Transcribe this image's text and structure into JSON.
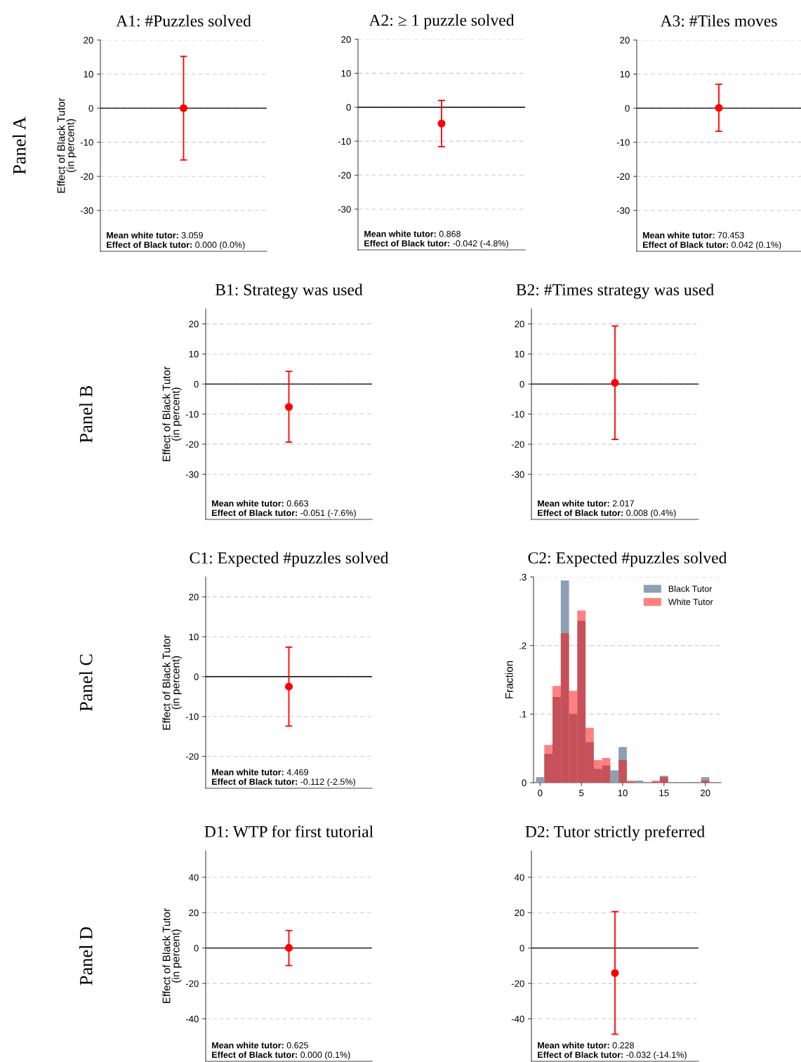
{
  "chart_data": [
    {
      "type": "scatter",
      "title": "A1: #Puzzles solved",
      "ylabel": "Effect of Black Tutor\n(in percent)",
      "categories": [
        null
      ],
      "values": [
        0.0
      ],
      "errors": [
        [
          -15.2,
          15.2
        ]
      ],
      "color": "#ff0000",
      "marker": "circle",
      "ylim": [
        -42,
        20
      ],
      "yticks": [
        20,
        10,
        0,
        -10,
        -20,
        -30
      ],
      "grid": "y",
      "tick_labels": "y",
      "ref_lines": [
        {
          "axis": "y",
          "value": 0,
          "color": "#000000"
        }
      ],
      "annotations": [
        "Panel A",
        "Mean white tutor: 3.059",
        "Effect of Black tutor: 0.000 (0.0%)"
      ]
    },
    {
      "type": "scatter",
      "title": "A2: ≥ 1 puzzle solved",
      "categories": [
        null
      ],
      "values": [
        -4.8
      ],
      "errors": [
        [
          -11.6,
          2.0
        ]
      ],
      "color": "#ff0000",
      "marker": "circle",
      "ylim": [
        -42,
        20
      ],
      "yticks": [
        20,
        10,
        0,
        -10,
        -20,
        -30
      ],
      "grid": "y",
      "tick_labels": "y",
      "ref_lines": [
        {
          "axis": "y",
          "value": 0,
          "color": "#000000"
        }
      ],
      "annotations": [
        "Mean white tutor: 0.868",
        "Effect of Black tutor: -0.042 (-4.8%)"
      ]
    },
    {
      "type": "scatter",
      "title": "A3: #Tiles moves",
      "categories": [
        null
      ],
      "values": [
        0.1
      ],
      "errors": [
        [
          -6.8,
          7.0
        ]
      ],
      "color": "#ff0000",
      "marker": "circle",
      "ylim": [
        -42,
        20
      ],
      "yticks": [
        20,
        10,
        0,
        -10,
        -20,
        -30
      ],
      "grid": "y",
      "tick_labels": "y",
      "ref_lines": [
        {
          "axis": "y",
          "value": 0,
          "color": "#000000"
        }
      ],
      "annotations": [
        "Mean white tutor: 70.453",
        "Effect of Black tutor: 0.042 (0.1%)"
      ]
    },
    {
      "type": "scatter",
      "title": "B1: Strategy was used",
      "ylabel": "Effect of Black Tutor\n(in percent)",
      "categories": [
        null
      ],
      "values": [
        -7.6
      ],
      "errors": [
        [
          -19.3,
          4.2
        ]
      ],
      "color": "#ff0000",
      "marker": "circle",
      "ylim": [
        -45,
        25
      ],
      "yticks": [
        20,
        10,
        0,
        -10,
        -20,
        -30
      ],
      "grid": "y",
      "tick_labels": "y",
      "ref_lines": [
        {
          "axis": "y",
          "value": 0,
          "color": "#000000"
        }
      ],
      "annotations": [
        "Panel B",
        "Mean white tutor: 0.663",
        "Effect of Black tutor: -0.051 (-7.6%)"
      ]
    },
    {
      "type": "scatter",
      "title": "B2: #Times strategy was used",
      "categories": [
        null
      ],
      "values": [
        0.4
      ],
      "errors": [
        [
          -18.4,
          19.3
        ]
      ],
      "color": "#ff0000",
      "marker": "circle",
      "ylim": [
        -45,
        25
      ],
      "yticks": [
        20,
        10,
        0,
        -10,
        -20,
        -30
      ],
      "grid": "y",
      "tick_labels": "y",
      "ref_lines": [
        {
          "axis": "y",
          "value": 0,
          "color": "#000000"
        }
      ],
      "annotations": [
        "Mean white tutor: 2.017",
        "Effect of Black tutor: 0.008 (0.4%)"
      ]
    },
    {
      "type": "scatter",
      "title": "C1: Expected #puzzles solved",
      "ylabel": "Effect of Black Tutor\n(in percent)",
      "categories": [
        null
      ],
      "values": [
        -2.5
      ],
      "errors": [
        [
          -12.4,
          7.4
        ]
      ],
      "color": "#ff0000",
      "marker": "circle",
      "ylim": [
        -28,
        25
      ],
      "yticks": [
        20,
        10,
        0,
        -10,
        -20
      ],
      "grid": "y",
      "tick_labels": "y",
      "ref_lines": [
        {
          "axis": "y",
          "value": 0,
          "color": "#000000"
        }
      ],
      "annotations": [
        "Panel C",
        "Mean white tutor: 4.469",
        "Effect of Black tutor: -0.112 (-2.5%)"
      ]
    },
    {
      "type": "histogram",
      "title": "C2: Expected #puzzles solved",
      "ylabel": "Fraction",
      "bins": [
        -0.5,
        0.5,
        1.5,
        2.5,
        3.5,
        4.5,
        5.5,
        6.5,
        7.5,
        8.5,
        9.5,
        10.5,
        11.5,
        12.5,
        13.5,
        14.5,
        15.5,
        16.5,
        17.5,
        18.5,
        19.5,
        20.5
      ],
      "series": [
        {
          "name": "Black Tutor",
          "color": "#8ca0b3",
          "values": [
            0.008,
            0.042,
            0.125,
            0.295,
            0.1,
            0.236,
            0.059,
            0.02,
            0.025,
            0.018,
            0.052,
            0,
            0.003,
            0,
            0,
            0.01,
            0,
            0,
            0,
            0,
            0.008
          ]
        },
        {
          "name": "White Tutor",
          "color": "#ff8080",
          "values": [
            0,
            0.055,
            0.141,
            0.218,
            0.134,
            0.251,
            0.08,
            0.033,
            0.036,
            0,
            0.033,
            0.003,
            0,
            0,
            0.003,
            0.008,
            0,
            0,
            0,
            0,
            0.003
          ]
        }
      ],
      "xlim": [
        -0.8,
        21.9
      ],
      "xticks": [
        0,
        5,
        10,
        15,
        20
      ],
      "ylim": [
        0,
        0.3
      ],
      "yticks": [
        {
          "value": 0,
          "label": "0"
        },
        {
          "value": 0.1,
          "label": ".1"
        },
        {
          "value": 0.2,
          "label": ".2"
        },
        {
          "value": 0.3,
          "label": ".3"
        }
      ],
      "grid": "y",
      "legend": "top right"
    },
    {
      "type": "scatter",
      "title": "D1: WTP for first tutorial",
      "ylabel": "Effect of Black Tutor\n(in percent)",
      "categories": [
        null
      ],
      "values": [
        0.1
      ],
      "errors": [
        [
          -9.9,
          9.9
        ]
      ],
      "color": "#ff0000",
      "marker": "circle",
      "ylim": [
        -64,
        55
      ],
      "yticks": [
        40,
        20,
        0,
        -20,
        -40
      ],
      "grid": "y",
      "tick_labels": "y",
      "ref_lines": [
        {
          "axis": "y",
          "value": 0,
          "color": "#000000"
        }
      ],
      "annotations": [
        "Panel D",
        "Mean white tutor: 0.625",
        "Effect of Black tutor: 0.000 (0.1%)"
      ]
    },
    {
      "type": "scatter",
      "title": "D2: Tutor strictly preferred",
      "categories": [
        null
      ],
      "values": [
        -14.1
      ],
      "errors": [
        [
          -48.7,
          20.6
        ]
      ],
      "color": "#ff0000",
      "marker": "circle",
      "ylim": [
        -64,
        55
      ],
      "yticks": [
        40,
        20,
        0,
        -20,
        -40
      ],
      "grid": "y",
      "tick_labels": "y",
      "ref_lines": [
        {
          "axis": "y",
          "value": 0,
          "color": "#000000"
        }
      ],
      "annotations": [
        "Mean white tutor: 0.228",
        "Effect of Black tutor: -0.032 (-14.1%)"
      ]
    }
  ]
}
